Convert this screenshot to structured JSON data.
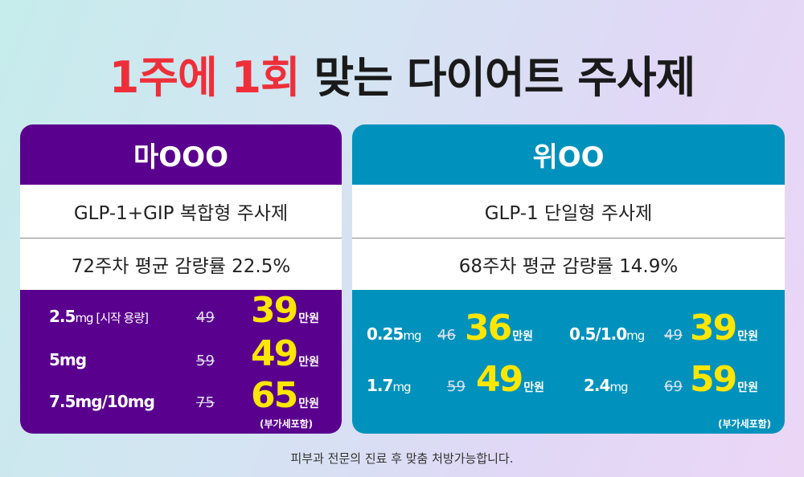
{
  "title": {
    "part1": "1주에 1회",
    "part2": " 맞는 다이어트 주사제"
  },
  "left": {
    "name": "마OOO",
    "type": "GLP-1+GIP 복합형 주사제",
    "result": "72주차 평균 감량률 22.5%",
    "rows": [
      {
        "dose": "2.5",
        "unit": "mg [시작 용량]",
        "old": "49",
        "price": "39"
      },
      {
        "dose": "5mg",
        "unit": "",
        "old": "59",
        "price": "49"
      },
      {
        "dose": "7.5mg/10mg",
        "unit": "",
        "old": "75",
        "price": "65"
      }
    ],
    "price_unit": "만원",
    "vat": "(부가세포함)"
  },
  "right": {
    "name": "위OO",
    "type": "GLP-1 단일형 주사제",
    "result": "68주차 평균 감량률 14.9%",
    "rows": [
      {
        "dose": "0.25",
        "unit": "mg",
        "old": "46",
        "price": "36"
      },
      {
        "dose": "0.5/1.0",
        "unit": "mg",
        "old": "49",
        "price": "39"
      },
      {
        "dose": "1.7",
        "unit": "mg",
        "old": "59",
        "price": "49"
      },
      {
        "dose": "2.4",
        "unit": "mg",
        "old": "69",
        "price": "59"
      }
    ],
    "price_unit": "만원",
    "vat": "(부가세포함)"
  },
  "footer": "피부과 전문의 진료 후 맞춤 처방가능합니다."
}
